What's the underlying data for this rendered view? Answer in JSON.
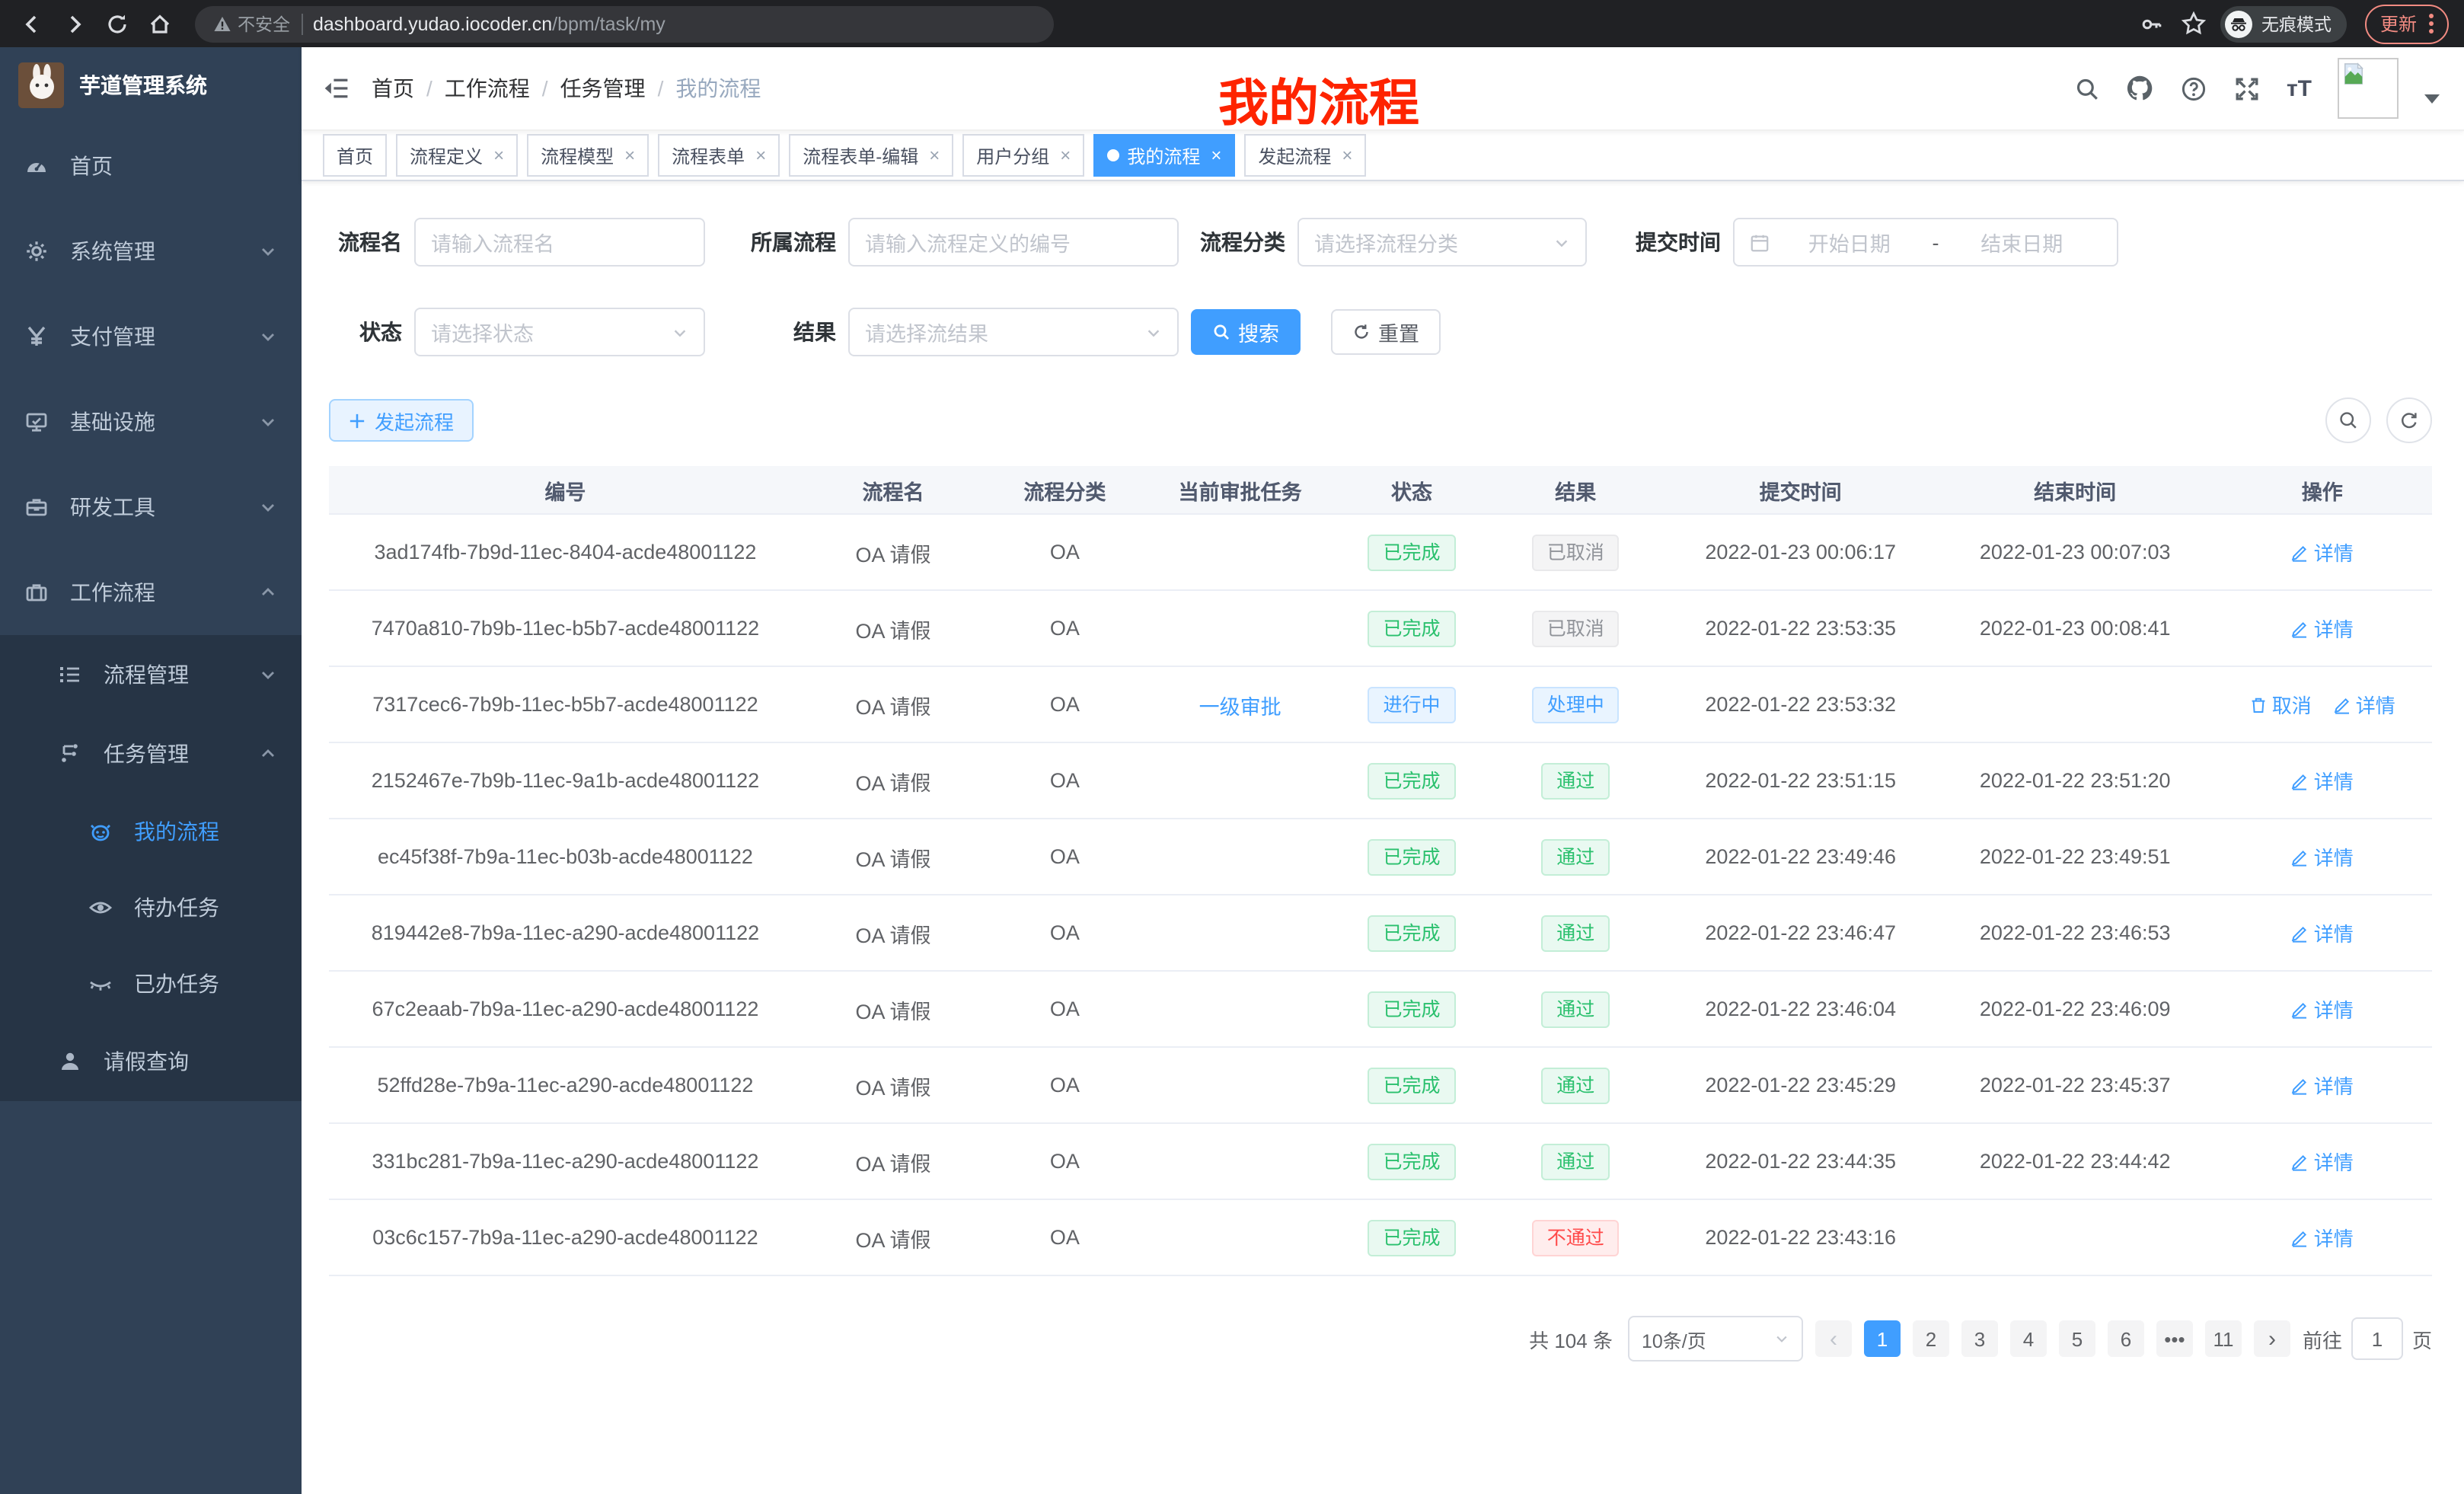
{
  "browser": {
    "security": "不安全",
    "url_host": "dashboard.yudao.iocoder.cn",
    "url_path": "/bpm/task/my",
    "incognito": "无痕模式",
    "update": "更新"
  },
  "sidebar": {
    "logo_title": "芋道管理系统",
    "items": [
      {
        "label": "首页"
      },
      {
        "label": "系统管理"
      },
      {
        "label": "支付管理"
      },
      {
        "label": "基础设施"
      },
      {
        "label": "研发工具"
      },
      {
        "label": "工作流程"
      }
    ],
    "workflow_children": [
      {
        "label": "流程管理"
      },
      {
        "label": "任务管理"
      },
      {
        "label": "我的流程"
      },
      {
        "label": "待办任务"
      },
      {
        "label": "已办任务"
      },
      {
        "label": "请假查询"
      }
    ]
  },
  "header": {
    "breadcrumb": [
      "首页",
      "工作流程",
      "任务管理",
      "我的流程"
    ],
    "breadcrumb_separator": "/",
    "annotation": "我的流程"
  },
  "tabs": {
    "close_glyph": "×",
    "items": [
      {
        "label": "首页"
      },
      {
        "label": "流程定义"
      },
      {
        "label": "流程模型"
      },
      {
        "label": "流程表单"
      },
      {
        "label": "流程表单-编辑"
      },
      {
        "label": "用户分组"
      },
      {
        "label": "我的流程"
      },
      {
        "label": "发起流程"
      }
    ]
  },
  "filters": {
    "name_label": "流程名",
    "name_placeholder": "请输入流程名",
    "process_label": "所属流程",
    "process_placeholder": "请输入流程定义的编号",
    "category_label": "流程分类",
    "category_placeholder": "请选择流程分类",
    "submit_time_label": "提交时间",
    "start_placeholder": "开始日期",
    "range_separator": "-",
    "end_placeholder": "结束日期",
    "status_label": "状态",
    "status_placeholder": "请选择状态",
    "result_label": "结果",
    "result_placeholder": "请选择流结果",
    "search_label": "搜索",
    "reset_label": "重置"
  },
  "toolbar": {
    "create_label": "发起流程"
  },
  "table": {
    "columns": [
      "编号",
      "流程名",
      "流程分类",
      "当前审批任务",
      "状态",
      "结果",
      "提交时间",
      "结束时间",
      "操作"
    ],
    "op_labels": {
      "detail": "详情",
      "cancel": "取消"
    },
    "rows": [
      {
        "id": "3ad174fb-7b9d-11ec-8404-acde48001122",
        "name": "OA 请假",
        "category": "OA",
        "task": "",
        "status": {
          "text": "已完成",
          "type": "success"
        },
        "result": {
          "text": "已取消",
          "type": "info"
        },
        "submit_time": "2022-01-23 00:06:17",
        "end_time": "2022-01-23 00:07:03",
        "ops": [
          "detail"
        ]
      },
      {
        "id": "7470a810-7b9b-11ec-b5b7-acde48001122",
        "name": "OA 请假",
        "category": "OA",
        "task": "",
        "status": {
          "text": "已完成",
          "type": "success"
        },
        "result": {
          "text": "已取消",
          "type": "info"
        },
        "submit_time": "2022-01-22 23:53:35",
        "end_time": "2022-01-23 00:08:41",
        "ops": [
          "detail"
        ]
      },
      {
        "id": "7317cec6-7b9b-11ec-b5b7-acde48001122",
        "name": "OA 请假",
        "category": "OA",
        "task": "一级审批",
        "status": {
          "text": "进行中",
          "type": "primary"
        },
        "result": {
          "text": "处理中",
          "type": "primary"
        },
        "submit_time": "2022-01-22 23:53:32",
        "end_time": "",
        "ops": [
          "cancel",
          "detail"
        ]
      },
      {
        "id": "2152467e-7b9b-11ec-9a1b-acde48001122",
        "name": "OA 请假",
        "category": "OA",
        "task": "",
        "status": {
          "text": "已完成",
          "type": "success"
        },
        "result": {
          "text": "通过",
          "type": "success"
        },
        "submit_time": "2022-01-22 23:51:15",
        "end_time": "2022-01-22 23:51:20",
        "ops": [
          "detail"
        ]
      },
      {
        "id": "ec45f38f-7b9a-11ec-b03b-acde48001122",
        "name": "OA 请假",
        "category": "OA",
        "task": "",
        "status": {
          "text": "已完成",
          "type": "success"
        },
        "result": {
          "text": "通过",
          "type": "success"
        },
        "submit_time": "2022-01-22 23:49:46",
        "end_time": "2022-01-22 23:49:51",
        "ops": [
          "detail"
        ]
      },
      {
        "id": "819442e8-7b9a-11ec-a290-acde48001122",
        "name": "OA 请假",
        "category": "OA",
        "task": "",
        "status": {
          "text": "已完成",
          "type": "success"
        },
        "result": {
          "text": "通过",
          "type": "success"
        },
        "submit_time": "2022-01-22 23:46:47",
        "end_time": "2022-01-22 23:46:53",
        "ops": [
          "detail"
        ]
      },
      {
        "id": "67c2eaab-7b9a-11ec-a290-acde48001122",
        "name": "OA 请假",
        "category": "OA",
        "task": "",
        "status": {
          "text": "已完成",
          "type": "success"
        },
        "result": {
          "text": "通过",
          "type": "success"
        },
        "submit_time": "2022-01-22 23:46:04",
        "end_time": "2022-01-22 23:46:09",
        "ops": [
          "detail"
        ]
      },
      {
        "id": "52ffd28e-7b9a-11ec-a290-acde48001122",
        "name": "OA 请假",
        "category": "OA",
        "task": "",
        "status": {
          "text": "已完成",
          "type": "success"
        },
        "result": {
          "text": "通过",
          "type": "success"
        },
        "submit_time": "2022-01-22 23:45:29",
        "end_time": "2022-01-22 23:45:37",
        "ops": [
          "detail"
        ]
      },
      {
        "id": "331bc281-7b9a-11ec-a290-acde48001122",
        "name": "OA 请假",
        "category": "OA",
        "task": "",
        "status": {
          "text": "已完成",
          "type": "success"
        },
        "result": {
          "text": "通过",
          "type": "success"
        },
        "submit_time": "2022-01-22 23:44:35",
        "end_time": "2022-01-22 23:44:42",
        "ops": [
          "detail"
        ]
      },
      {
        "id": "03c6c157-7b9a-11ec-a290-acde48001122",
        "name": "OA 请假",
        "category": "OA",
        "task": "",
        "status": {
          "text": "已完成",
          "type": "success"
        },
        "result": {
          "text": "不通过",
          "type": "danger"
        },
        "submit_time": "2022-01-22 23:43:16",
        "end_time": "",
        "ops": [
          "detail"
        ]
      }
    ]
  },
  "pagination": {
    "total_text": "共 104 条",
    "page_size": "10条/页",
    "prev": "‹",
    "next": "›",
    "pages": [
      "1",
      "2",
      "3",
      "4",
      "5",
      "6",
      "•••",
      "11"
    ],
    "active": "1",
    "more": "•••",
    "goto_label": "前往",
    "goto_value": "1",
    "goto_unit": "页"
  }
}
